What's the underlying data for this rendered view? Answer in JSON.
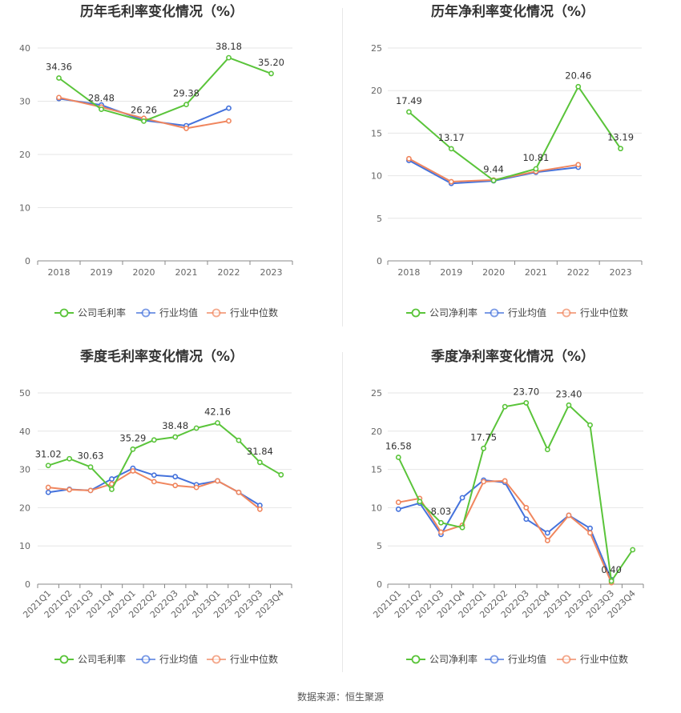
{
  "source": "数据来源：恒生聚源",
  "colors": {
    "company": "#5ac43a",
    "avg": "#4472dc",
    "median": "#f0865e"
  },
  "chart_data": [
    {
      "type": "line",
      "title": "历年毛利率变化情况（%）",
      "categories": [
        "2018",
        "2019",
        "2020",
        "2021",
        "2022",
        "2023"
      ],
      "ylim": [
        0,
        40
      ],
      "yticks": [
        0,
        10,
        20,
        30,
        40
      ],
      "grid": true,
      "legend_position": "bottom",
      "series": [
        {
          "name": "公司毛利率",
          "key": "company",
          "values": [
            34.36,
            28.48,
            26.26,
            29.38,
            38.18,
            35.2
          ]
        },
        {
          "name": "行业均值",
          "key": "avg",
          "values": [
            30.5,
            29.3,
            26.4,
            25.4,
            28.7,
            null
          ]
        },
        {
          "name": "行业中位数",
          "key": "median",
          "values": [
            30.7,
            28.9,
            26.8,
            24.9,
            26.3,
            null
          ]
        }
      ],
      "labels": [
        {
          "i": 0,
          "text": "34.36"
        },
        {
          "i": 1,
          "text": "28.48"
        },
        {
          "i": 2,
          "text": "26.26"
        },
        {
          "i": 3,
          "text": "29.38"
        },
        {
          "i": 4,
          "text": "38.18"
        },
        {
          "i": 5,
          "text": "35.20"
        }
      ]
    },
    {
      "type": "line",
      "title": "历年净利率变化情况（%）",
      "categories": [
        "2018",
        "2019",
        "2020",
        "2021",
        "2022",
        "2023"
      ],
      "ylim": [
        0,
        25
      ],
      "yticks": [
        0,
        5,
        10,
        15,
        20,
        25
      ],
      "grid": true,
      "legend_position": "bottom",
      "series": [
        {
          "name": "公司净利率",
          "key": "company",
          "values": [
            17.49,
            13.17,
            9.44,
            10.81,
            20.46,
            13.19
          ]
        },
        {
          "name": "行业均值",
          "key": "avg",
          "values": [
            11.8,
            9.1,
            9.4,
            10.4,
            11.0,
            null
          ]
        },
        {
          "name": "行业中位数",
          "key": "median",
          "values": [
            12.0,
            9.3,
            9.5,
            10.5,
            11.3,
            null
          ]
        }
      ],
      "labels": [
        {
          "i": 0,
          "text": "17.49"
        },
        {
          "i": 1,
          "text": "13.17"
        },
        {
          "i": 2,
          "text": "9.44"
        },
        {
          "i": 3,
          "text": "10.81"
        },
        {
          "i": 4,
          "text": "20.46"
        },
        {
          "i": 5,
          "text": "13.19"
        }
      ]
    },
    {
      "type": "line",
      "title": "季度毛利率变化情况（%）",
      "categories": [
        "2021Q1",
        "2021Q2",
        "2021Q3",
        "2021Q4",
        "2022Q1",
        "2022Q2",
        "2022Q3",
        "2022Q4",
        "2023Q1",
        "2023Q2",
        "2023Q3",
        "2023Q4"
      ],
      "ylim": [
        0,
        50
      ],
      "yticks": [
        0,
        10,
        20,
        30,
        40,
        50
      ],
      "grid": true,
      "legend_position": "bottom",
      "series": [
        {
          "name": "公司毛利率",
          "key": "company",
          "values": [
            31.02,
            32.8,
            30.63,
            24.8,
            35.29,
            37.7,
            38.48,
            40.8,
            42.16,
            37.6,
            31.84,
            28.6
          ]
        },
        {
          "name": "行业均值",
          "key": "avg",
          "values": [
            24.0,
            24.8,
            24.5,
            27.5,
            30.3,
            28.5,
            28.1,
            26.0,
            27.0,
            24.0,
            20.6,
            null
          ]
        },
        {
          "name": "行业中位数",
          "key": "median",
          "values": [
            25.3,
            24.7,
            24.5,
            26.2,
            29.6,
            26.8,
            25.8,
            25.3,
            27.0,
            24.0,
            19.6,
            null
          ]
        }
      ],
      "labels": [
        {
          "i": 0,
          "text": "31.02"
        },
        {
          "i": 2,
          "text": "30.63"
        },
        {
          "i": 4,
          "text": "35.29"
        },
        {
          "i": 6,
          "text": "38.48"
        },
        {
          "i": 8,
          "text": "42.16"
        },
        {
          "i": 10,
          "text": "31.84"
        }
      ]
    },
    {
      "type": "line",
      "title": "季度净利率变化情况（%）",
      "categories": [
        "2021Q1",
        "2021Q2",
        "2021Q3",
        "2021Q4",
        "2022Q1",
        "2022Q2",
        "2022Q3",
        "2022Q4",
        "2023Q1",
        "2023Q2",
        "2023Q3",
        "2023Q4"
      ],
      "ylim": [
        0,
        25
      ],
      "yticks": [
        0,
        5,
        10,
        15,
        20,
        25
      ],
      "grid": true,
      "legend_position": "bottom",
      "series": [
        {
          "name": "公司净利率",
          "key": "company",
          "values": [
            16.58,
            10.8,
            8.03,
            7.4,
            17.75,
            23.2,
            23.7,
            17.6,
            23.4,
            20.8,
            0.4,
            4.5
          ]
        },
        {
          "name": "行业均值",
          "key": "avg",
          "values": [
            9.8,
            10.6,
            6.5,
            11.3,
            13.6,
            13.3,
            8.5,
            6.7,
            9.0,
            7.3,
            0.6,
            null
          ]
        },
        {
          "name": "行业中位数",
          "key": "median",
          "values": [
            10.7,
            11.2,
            6.8,
            7.7,
            13.4,
            13.5,
            10.0,
            5.7,
            9.0,
            6.7,
            0.2,
            null
          ]
        }
      ],
      "labels": [
        {
          "i": 0,
          "text": "16.58"
        },
        {
          "i": 2,
          "text": "8.03"
        },
        {
          "i": 4,
          "text": "17.75"
        },
        {
          "i": 6,
          "text": "23.70"
        },
        {
          "i": 8,
          "text": "23.40"
        },
        {
          "i": 10,
          "text": "0.40"
        }
      ]
    }
  ]
}
